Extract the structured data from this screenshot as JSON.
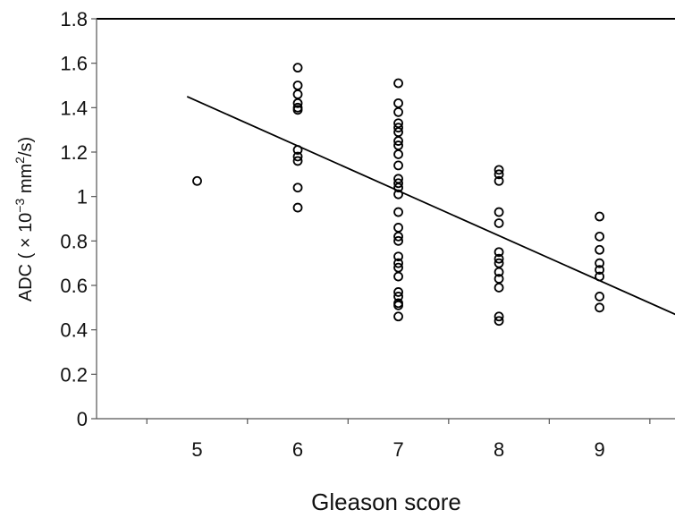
{
  "chart_data": {
    "type": "scatter",
    "title": "",
    "xlabel": "Gleason score",
    "ylabel": {
      "prefix": "ADC ( × 10",
      "exp1": "−3",
      "mid": " mm",
      "exp2": "2",
      "suffix": "/s)"
    },
    "xlim": [
      4,
      9.75
    ],
    "ylim": [
      0,
      1.8
    ],
    "x_ticks": [
      "5",
      "6",
      "7",
      "8",
      "9"
    ],
    "y_ticks": [
      "0",
      "0.2",
      "0.4",
      "0.6",
      "0.8",
      "1",
      "1.2",
      "1.4",
      "1.6",
      "1.8"
    ],
    "grid": false,
    "legend": "none",
    "points": [
      {
        "x": 5,
        "y": 1.07
      },
      {
        "x": 6,
        "y": 1.58
      },
      {
        "x": 6,
        "y": 1.5
      },
      {
        "x": 6,
        "y": 1.46
      },
      {
        "x": 6,
        "y": 1.42
      },
      {
        "x": 6,
        "y": 1.4
      },
      {
        "x": 6,
        "y": 1.39
      },
      {
        "x": 6,
        "y": 1.21
      },
      {
        "x": 6,
        "y": 1.18
      },
      {
        "x": 6,
        "y": 1.16
      },
      {
        "x": 6,
        "y": 1.04
      },
      {
        "x": 6,
        "y": 0.95
      },
      {
        "x": 7,
        "y": 1.51
      },
      {
        "x": 7,
        "y": 1.42
      },
      {
        "x": 7,
        "y": 1.38
      },
      {
        "x": 7,
        "y": 1.33
      },
      {
        "x": 7,
        "y": 1.31
      },
      {
        "x": 7,
        "y": 1.29
      },
      {
        "x": 7,
        "y": 1.25
      },
      {
        "x": 7,
        "y": 1.23
      },
      {
        "x": 7,
        "y": 1.19
      },
      {
        "x": 7,
        "y": 1.14
      },
      {
        "x": 7,
        "y": 1.08
      },
      {
        "x": 7,
        "y": 1.06
      },
      {
        "x": 7,
        "y": 1.04
      },
      {
        "x": 7,
        "y": 1.01
      },
      {
        "x": 7,
        "y": 0.93
      },
      {
        "x": 7,
        "y": 0.86
      },
      {
        "x": 7,
        "y": 0.82
      },
      {
        "x": 7,
        "y": 0.8
      },
      {
        "x": 7,
        "y": 0.73
      },
      {
        "x": 7,
        "y": 0.7
      },
      {
        "x": 7,
        "y": 0.68
      },
      {
        "x": 7,
        "y": 0.64
      },
      {
        "x": 7,
        "y": 0.57
      },
      {
        "x": 7,
        "y": 0.55
      },
      {
        "x": 7,
        "y": 0.52
      },
      {
        "x": 7,
        "y": 0.51
      },
      {
        "x": 7,
        "y": 0.46
      },
      {
        "x": 8,
        "y": 1.12
      },
      {
        "x": 8,
        "y": 1.1
      },
      {
        "x": 8,
        "y": 1.07
      },
      {
        "x": 8,
        "y": 0.93
      },
      {
        "x": 8,
        "y": 0.88
      },
      {
        "x": 8,
        "y": 0.75
      },
      {
        "x": 8,
        "y": 0.72
      },
      {
        "x": 8,
        "y": 0.7
      },
      {
        "x": 8,
        "y": 0.66
      },
      {
        "x": 8,
        "y": 0.63
      },
      {
        "x": 8,
        "y": 0.59
      },
      {
        "x": 8,
        "y": 0.46
      },
      {
        "x": 8,
        "y": 0.44
      },
      {
        "x": 9,
        "y": 0.91
      },
      {
        "x": 9,
        "y": 0.82
      },
      {
        "x": 9,
        "y": 0.76
      },
      {
        "x": 9,
        "y": 0.7
      },
      {
        "x": 9,
        "y": 0.67
      },
      {
        "x": 9,
        "y": 0.64
      },
      {
        "x": 9,
        "y": 0.55
      },
      {
        "x": 9,
        "y": 0.5
      }
    ],
    "trendline": {
      "x": [
        4.9,
        9.8
      ],
      "y": [
        1.45,
        0.46
      ]
    }
  }
}
